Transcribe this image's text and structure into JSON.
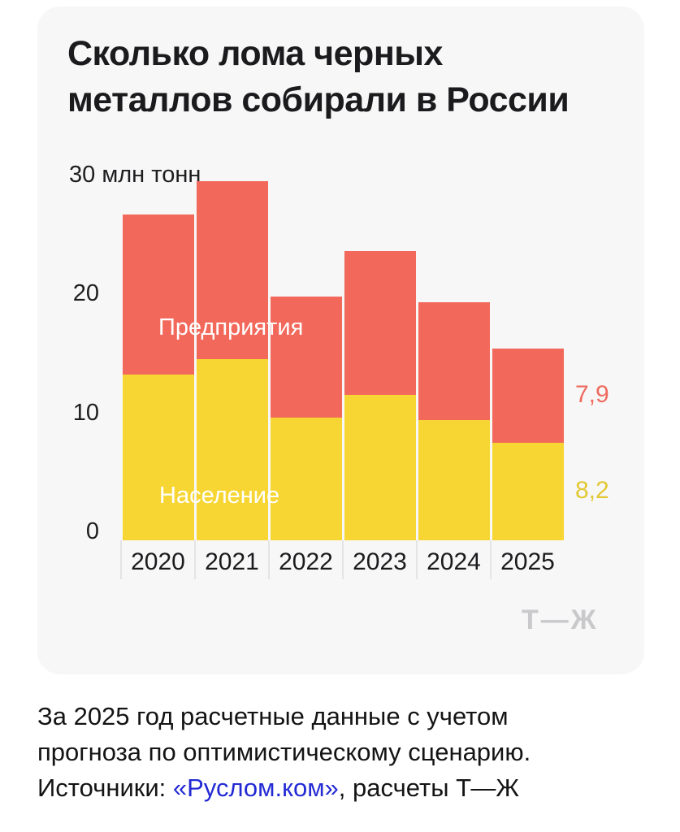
{
  "card": {
    "title_line1": "Сколько лома черных",
    "title_line2": "металлов собирали в России",
    "logo": "Т—Ж"
  },
  "chart_data": {
    "type": "bar",
    "stacked": true,
    "title": "Сколько лома черных металлов собирали в России",
    "unit": "млн тонн",
    "categories": [
      "2020",
      "2021",
      "2022",
      "2023",
      "2024",
      "2025"
    ],
    "series": [
      {
        "name": "Население",
        "color": "#f7d633",
        "values": [
          13.9,
          15.2,
          10.3,
          12.2,
          10.1,
          8.2
        ]
      },
      {
        "name": "Предприятия",
        "color": "#f2695c",
        "values": [
          13.5,
          15.0,
          10.2,
          12.1,
          9.9,
          7.9
        ]
      }
    ],
    "totals": [
      27.4,
      30.2,
      20.5,
      24.3,
      20.0,
      16.1
    ],
    "ylim": [
      0,
      30
    ],
    "yticks": [
      0,
      10,
      20,
      30
    ],
    "ytick_top_label": "30 млн тонн",
    "value_labels": [
      {
        "series": "Предприятия",
        "text": "7,9",
        "color": "#ee6b5e"
      },
      {
        "series": "Население",
        "text": "8,2",
        "color": "#e2c832"
      }
    ],
    "grid": false,
    "legend_position": "inside-bars"
  },
  "footer": {
    "line1": "За 2025 год расчетные данные с учетом",
    "line2": "прогноза по оптимистическому сценарию.",
    "sources_label": "Источники: ",
    "link_text": "«Руслом.ком»",
    "sources_rest": ", расчеты Т—Ж"
  },
  "colors": {
    "page_bg": "#ffffff",
    "card_bg": "#f7f7f8",
    "bar_red": "#f2695c",
    "bar_yellow": "#f7d633",
    "text_dark": "#1b1b1d",
    "link_blue": "#232ad4",
    "logo_gray": "#c9c9cc"
  }
}
